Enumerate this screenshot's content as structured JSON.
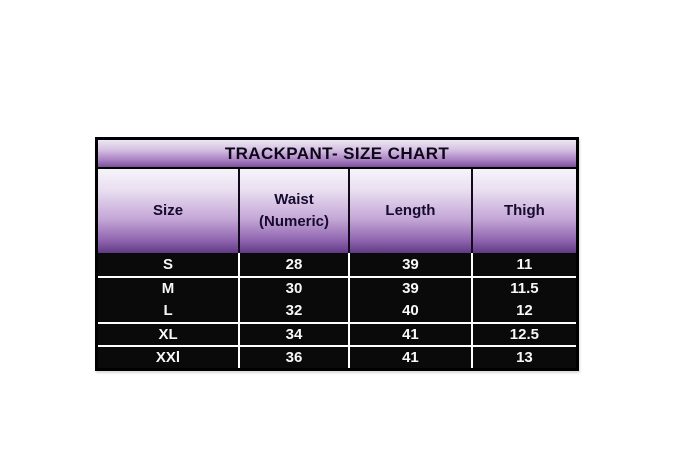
{
  "title": "TRACKPANT- SIZE CHART",
  "table": {
    "columns": [
      {
        "key": "size",
        "label": "Size"
      },
      {
        "key": "waist",
        "label": "Waist (Numeric)"
      },
      {
        "key": "length",
        "label": "Length"
      },
      {
        "key": "thigh",
        "label": "Thigh"
      }
    ],
    "rows": [
      {
        "size": "S",
        "waist": "28",
        "length": "39",
        "thigh": "11"
      },
      {
        "size": "M",
        "waist": "30",
        "length": "39",
        "thigh": "11.5"
      },
      {
        "size": "L",
        "waist": "32",
        "length": "40",
        "thigh": "12"
      },
      {
        "size": "XL",
        "waist": "34",
        "length": "41",
        "thigh": "12.5"
      },
      {
        "size": "XXl",
        "waist": "36",
        "length": "41",
        "thigh": "13"
      }
    ]
  },
  "colors": {
    "gradient_top": "#ece6f2",
    "gradient_bottom": "#5f3a82",
    "row_background": "#0a0a0a",
    "row_text": "#ffffff",
    "header_text": "#160b2e",
    "separator": "#ffffff",
    "border": "#000000",
    "page_background": "#ffffff"
  },
  "chart_data": {
    "type": "table",
    "title": "TRACKPANT- SIZE CHART",
    "columns": [
      "Size",
      "Waist (Numeric)",
      "Length",
      "Thigh"
    ],
    "rows": [
      [
        "S",
        "28",
        "39",
        "11"
      ],
      [
        "M",
        "30",
        "39",
        "11.5"
      ],
      [
        "L",
        "32",
        "40",
        "12"
      ],
      [
        "XL",
        "34",
        "41",
        "12.5"
      ],
      [
        "XXl",
        "36",
        "41",
        "13"
      ]
    ]
  }
}
